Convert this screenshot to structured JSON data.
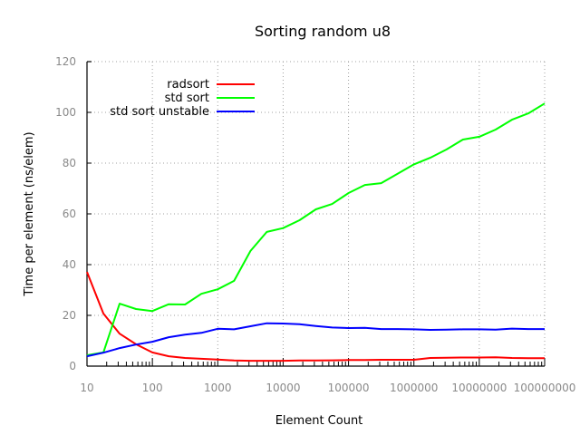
{
  "chart_data": {
    "type": "line",
    "title": "Sorting random u8",
    "xlabel": "Element Count",
    "ylabel": "Time per element (ns/elem)",
    "xscale": "log",
    "xlim": [
      10,
      100000000
    ],
    "ylim": [
      0,
      120
    ],
    "grid": true,
    "legend_position": "top-left (inside)",
    "x_tick_labels": [
      "10",
      "100",
      "1000",
      "10000",
      "100000",
      "1000000",
      "10000000",
      "100000000"
    ],
    "y_tick_labels": [
      "0",
      "20",
      "40",
      "60",
      "80",
      "100",
      "120"
    ],
    "x": [
      10,
      17.8,
      31.6,
      56.2,
      100,
      178,
      316,
      562,
      1000,
      1778,
      3162,
      5623,
      10000,
      17783,
      31623,
      56234,
      100000,
      177828,
      316228,
      562341,
      1000000,
      1778279,
      3162278,
      5623413,
      10000000,
      17782794,
      31622777,
      56234133,
      100000000
    ],
    "series": [
      {
        "name": "radsort",
        "color": "#ff0000",
        "values": [
          37.1,
          20.7,
          12.8,
          8.6,
          5.4,
          3.9,
          3.2,
          2.9,
          2.6,
          2.2,
          2.1,
          2.1,
          2.1,
          2.2,
          2.2,
          2.3,
          2.4,
          2.4,
          2.5,
          2.5,
          2.5,
          3.2,
          3.3,
          3.4,
          3.4,
          3.5,
          3.2,
          3.1,
          3.1
        ]
      },
      {
        "name": "std sort",
        "color": "#00ff00",
        "values": [
          4.3,
          5.4,
          24.6,
          22.5,
          21.7,
          24.4,
          24.3,
          28.5,
          30.3,
          33.6,
          45.4,
          52.9,
          54.4,
          57.5,
          61.8,
          63.9,
          68.2,
          71.4,
          72.1,
          75.8,
          79.5,
          82.1,
          85.4,
          89.3,
          90.4,
          93.2,
          97.1,
          99.6,
          103.5
        ]
      },
      {
        "name": "std sort unstable",
        "color": "#0000ff",
        "values": [
          3.9,
          5.3,
          7.1,
          8.5,
          9.6,
          11.4,
          12.4,
          13.1,
          14.7,
          14.5,
          15.7,
          16.9,
          16.8,
          16.5,
          15.8,
          15.2,
          15.0,
          15.1,
          14.6,
          14.6,
          14.5,
          14.3,
          14.4,
          14.5,
          14.5,
          14.4,
          14.8,
          14.6,
          14.6
        ]
      }
    ]
  }
}
